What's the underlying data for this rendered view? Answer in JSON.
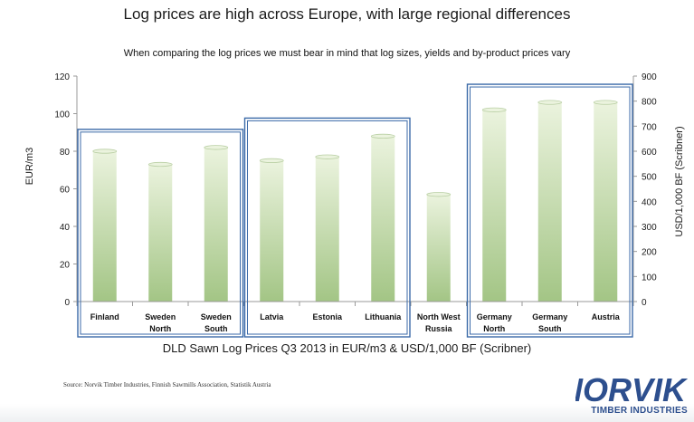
{
  "title": "Log prices are high across Europe, with large regional differences",
  "subtitle": "When comparing the log prices we must bear in mind that log sizes, yields and by-product prices vary",
  "caption": "DLD Sawn Log Prices Q3 2013 in EUR/m3 & USD/1,000 BF (Scribner)",
  "source": "Source: Norvik Timber Industries, Finnish Sawmills Association, Statistik Austria",
  "logo": {
    "name": "NORVIK",
    "tagline": "TIMBER INDUSTRIES"
  },
  "colors": {
    "bar_top": "#ebf3de",
    "bar_bottom": "#a3c585",
    "bar_stroke": "#b9cfa4",
    "group_box": "#3b6aa8",
    "logo": "#2d4f8e"
  },
  "chart_data": {
    "type": "bar",
    "categories": [
      [
        "Finland"
      ],
      [
        "Sweden",
        "North"
      ],
      [
        "Sweden",
        "South"
      ],
      [
        "Latvia"
      ],
      [
        "Estonia"
      ],
      [
        "Lithuania"
      ],
      [
        "North West",
        "Russia"
      ],
      [
        "Germany",
        "North"
      ],
      [
        "Germany",
        "South"
      ],
      [
        "Austria"
      ]
    ],
    "values": [
      80,
      73,
      82,
      75,
      77,
      88,
      57,
      102,
      106,
      106
    ],
    "ylabel": "EUR/m3",
    "ylim": [
      0,
      120
    ],
    "yticks": [
      0,
      20,
      40,
      60,
      80,
      100,
      120
    ],
    "y2label": "USD/1,000 BF (Scribner)",
    "y2lim": [
      0,
      900
    ],
    "y2ticks": [
      0,
      100,
      200,
      300,
      400,
      500,
      600,
      700,
      800,
      900
    ],
    "grid": false,
    "groups": [
      {
        "start": 0,
        "end": 2
      },
      {
        "start": 3,
        "end": 5
      },
      {
        "start": 7,
        "end": 9
      }
    ]
  }
}
